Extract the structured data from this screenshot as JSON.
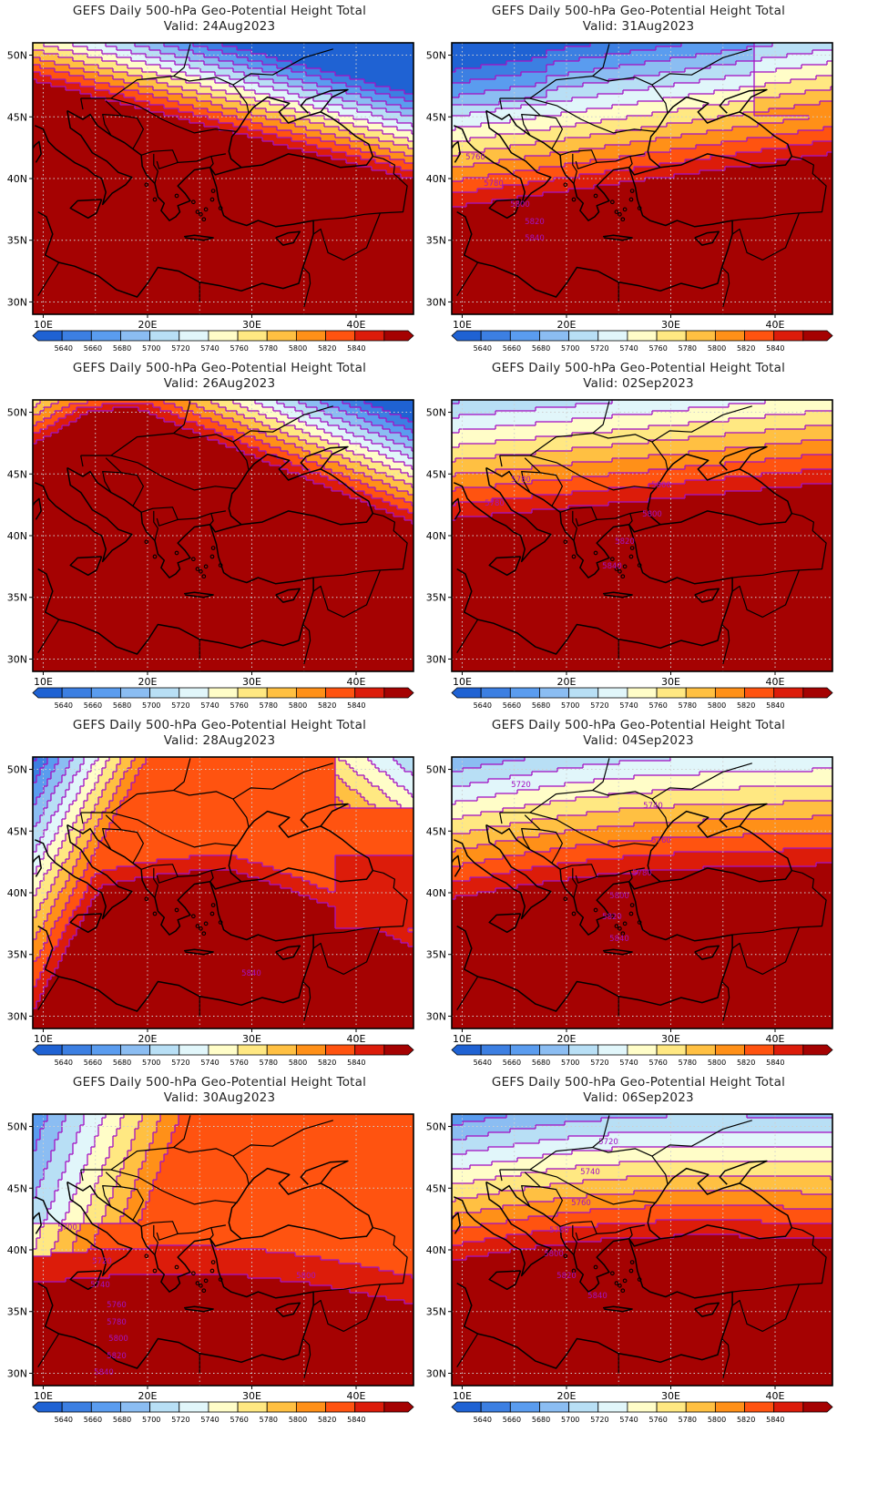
{
  "panels": [
    {
      "title": "GEFS Daily 500-hPa Geo-Potential Height Total",
      "valid": "Valid: 24Aug2023",
      "pattern": "ridge-strong",
      "labels": []
    },
    {
      "title": "GEFS Daily 500-hPa Geo-Potential Height Total",
      "valid": "Valid: 31Aug2023",
      "pattern": "zonal-low",
      "labels": [
        "5760",
        "5780",
        "5800",
        "5820",
        "5840"
      ]
    },
    {
      "title": "GEFS Daily 500-hPa Geo-Potential Height Total",
      "valid": "Valid: 26Aug2023",
      "pattern": "ridge-closed",
      "labels": []
    },
    {
      "title": "GEFS Daily 500-hPa Geo-Potential Height Total",
      "valid": "Valid: 02Sep2023",
      "pattern": "zonal-mid",
      "labels": [
        "5780",
        "5780",
        "5800",
        "5800",
        "5820",
        "5840"
      ]
    },
    {
      "title": "GEFS Daily 500-hPa Geo-Potential Height Total",
      "valid": "Valid: 28Aug2023",
      "pattern": "trough-west",
      "labels": [
        "5840"
      ]
    },
    {
      "title": "GEFS Daily 500-hPa Geo-Potential Height Total",
      "valid": "Valid: 04Sep2023",
      "pattern": "zonal-cool",
      "labels": [
        "5720",
        "5740",
        "5760",
        "5780",
        "5800",
        "5820",
        "5840"
      ]
    },
    {
      "title": "GEFS Daily 500-hPa Geo-Potential Height Total",
      "valid": "Valid: 30Aug2023",
      "pattern": "trough-deep",
      "labels": [
        "5700",
        "5720",
        "5740",
        "5760",
        "5780",
        "5800",
        "5800",
        "5820",
        "5840"
      ]
    },
    {
      "title": "GEFS Daily 500-hPa Geo-Potential Height Total",
      "valid": "Valid: 06Sep2023",
      "pattern": "zonal-cool2",
      "labels": [
        "5720",
        "5740",
        "5760",
        "5780",
        "5800",
        "5820",
        "5840"
      ]
    }
  ],
  "legend": {
    "levels": [
      "5640",
      "5660",
      "5680",
      "5700",
      "5720",
      "5740",
      "5760",
      "5780",
      "5800",
      "5820",
      "5840"
    ],
    "colors": [
      "#1f62d3",
      "#3c7fe2",
      "#5a9cef",
      "#8bbdf2",
      "#b8dff5",
      "#e1f6fa",
      "#fffdc8",
      "#ffe882",
      "#ffc042",
      "#ff9018",
      "#ff5310",
      "#dc1c0a",
      "#a50202"
    ]
  },
  "axes": {
    "lat_labels": [
      "50N",
      "45N",
      "40N",
      "35N",
      "30N"
    ],
    "lon_labels": [
      "10E",
      "20E",
      "30E",
      "40E"
    ]
  },
  "contour_color": "#a412c4"
}
